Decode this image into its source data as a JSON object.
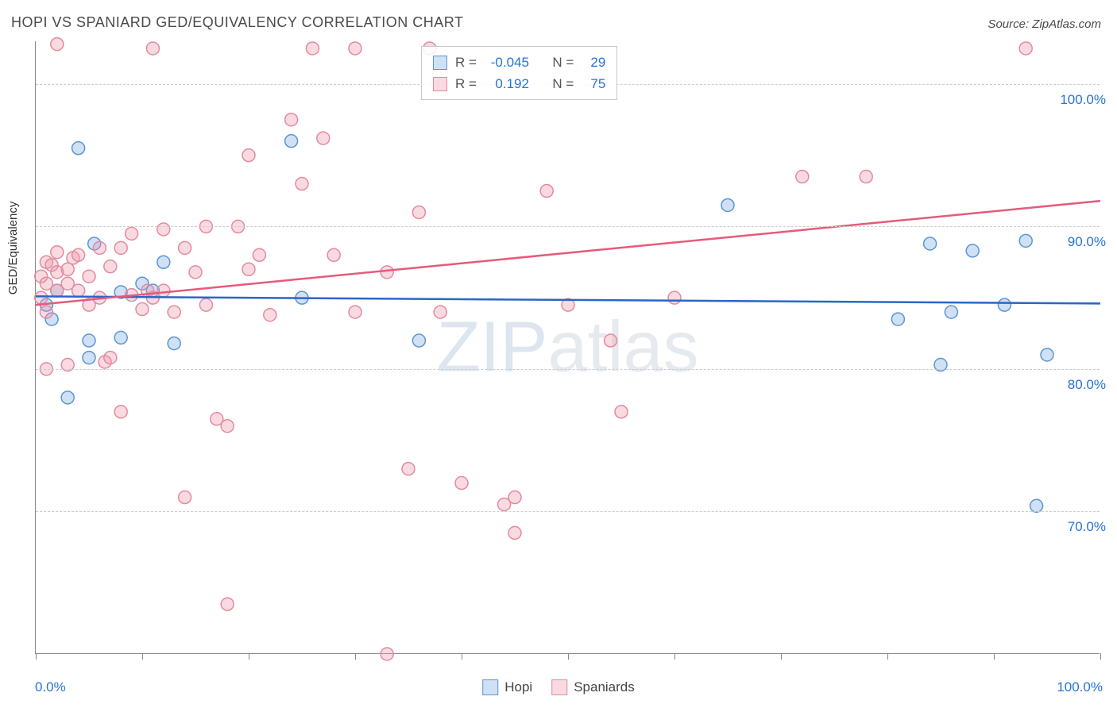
{
  "title": "HOPI VS SPANIARD GED/EQUIVALENCY CORRELATION CHART",
  "source": "Source: ZipAtlas.com",
  "watermark": "ZIPatlas",
  "y_axis_label": "GED/Equivalency",
  "plot": {
    "x_range": [
      0,
      100
    ],
    "y_range": [
      60,
      103
    ],
    "y_gridlines": [
      70,
      80,
      90,
      100
    ],
    "y_tick_labels": [
      "70.0%",
      "80.0%",
      "90.0%",
      "100.0%"
    ],
    "x_ticks": [
      0,
      10,
      20,
      30,
      40,
      50,
      60,
      70,
      80,
      90,
      100
    ],
    "x_tick_labels_shown": {
      "0": "0.0%",
      "100": "100.0%"
    },
    "grid_color": "#cccccc",
    "axis_color": "#888888",
    "background": "#ffffff",
    "marker_radius": 8,
    "marker_stroke_width": 1.5,
    "line_width": 2.5
  },
  "series": [
    {
      "name": "Hopi",
      "color_fill": "rgba(120,170,230,0.35)",
      "color_stroke": "#5a96d2",
      "line_color": "#2a66c8",
      "R": "-0.045",
      "N": "29",
      "trend": {
        "x1": 0,
        "y1": 85.1,
        "x2": 100,
        "y2": 84.6
      },
      "points": [
        [
          1,
          84.5
        ],
        [
          1.5,
          83.5
        ],
        [
          2,
          85.5
        ],
        [
          3,
          78.0
        ],
        [
          4,
          95.5
        ],
        [
          5,
          80.8
        ],
        [
          5,
          82.0
        ],
        [
          5.5,
          88.8
        ],
        [
          8,
          85.4
        ],
        [
          8,
          82.2
        ],
        [
          10,
          86.0
        ],
        [
          11,
          85.5
        ],
        [
          12,
          87.5
        ],
        [
          13,
          81.8
        ],
        [
          24,
          96.0
        ],
        [
          25,
          85.0
        ],
        [
          36,
          82.0
        ],
        [
          65,
          91.5
        ],
        [
          81,
          83.5
        ],
        [
          84,
          88.8
        ],
        [
          85,
          80.3
        ],
        [
          86,
          84.0
        ],
        [
          88,
          88.3
        ],
        [
          91,
          84.5
        ],
        [
          93,
          89.0
        ],
        [
          94,
          70.4
        ],
        [
          95,
          81.0
        ]
      ]
    },
    {
      "name": "Spaniards",
      "color_fill": "rgba(240,150,170,0.35)",
      "color_stroke": "#e38aa0",
      "line_color": "#e65a7a",
      "R": "0.192",
      "N": "75",
      "trend": {
        "x1": 0,
        "y1": 84.5,
        "x2": 100,
        "y2": 91.8
      },
      "points": [
        [
          0.5,
          86.5
        ],
        [
          0.5,
          85.0
        ],
        [
          1,
          87.5
        ],
        [
          1,
          86.0
        ],
        [
          1,
          84.0
        ],
        [
          1,
          80.0
        ],
        [
          1.5,
          87.3
        ],
        [
          2,
          88.2
        ],
        [
          2,
          86.8
        ],
        [
          2,
          85.5
        ],
        [
          2,
          102.8
        ],
        [
          3,
          87.0
        ],
        [
          3,
          86.0
        ],
        [
          3,
          80.3
        ],
        [
          3.5,
          87.8
        ],
        [
          4,
          88.0
        ],
        [
          4,
          85.5
        ],
        [
          5,
          86.5
        ],
        [
          5,
          84.5
        ],
        [
          6,
          88.5
        ],
        [
          6,
          85.0
        ],
        [
          6.5,
          80.5
        ],
        [
          7,
          80.8
        ],
        [
          7,
          87.2
        ],
        [
          8,
          88.5
        ],
        [
          8,
          77.0
        ],
        [
          9,
          89.5
        ],
        [
          9,
          85.2
        ],
        [
          10,
          84.2
        ],
        [
          10.5,
          85.5
        ],
        [
          11,
          85.0
        ],
        [
          11,
          102.5
        ],
        [
          12,
          85.5
        ],
        [
          12,
          89.8
        ],
        [
          13,
          84.0
        ],
        [
          14,
          88.5
        ],
        [
          14,
          71.0
        ],
        [
          15,
          86.8
        ],
        [
          16,
          90.0
        ],
        [
          16,
          84.5
        ],
        [
          17,
          76.5
        ],
        [
          18,
          76.0
        ],
        [
          18,
          63.5
        ],
        [
          19,
          90.0
        ],
        [
          20,
          95.0
        ],
        [
          20,
          87.0
        ],
        [
          21,
          88.0
        ],
        [
          22,
          83.8
        ],
        [
          24,
          97.5
        ],
        [
          25,
          93.0
        ],
        [
          26,
          102.5
        ],
        [
          27,
          96.2
        ],
        [
          28,
          88.0
        ],
        [
          30,
          84.0
        ],
        [
          30,
          102.5
        ],
        [
          33,
          86.8
        ],
        [
          33,
          60.0
        ],
        [
          35,
          73.0
        ],
        [
          36,
          91.0
        ],
        [
          37,
          102.5
        ],
        [
          38,
          84.0
        ],
        [
          40,
          72.0
        ],
        [
          44,
          70.5
        ],
        [
          45,
          71.0
        ],
        [
          45,
          68.5
        ],
        [
          48,
          92.5
        ],
        [
          50,
          84.5
        ],
        [
          54,
          82.0
        ],
        [
          55,
          77.0
        ],
        [
          60,
          85.0
        ],
        [
          72,
          93.5
        ],
        [
          78,
          93.5
        ],
        [
          93,
          102.5
        ]
      ]
    }
  ],
  "legend": {
    "items": [
      "Hopi",
      "Spaniards"
    ]
  },
  "stats_box": {
    "R_label": "R =",
    "N_label": "N ="
  }
}
